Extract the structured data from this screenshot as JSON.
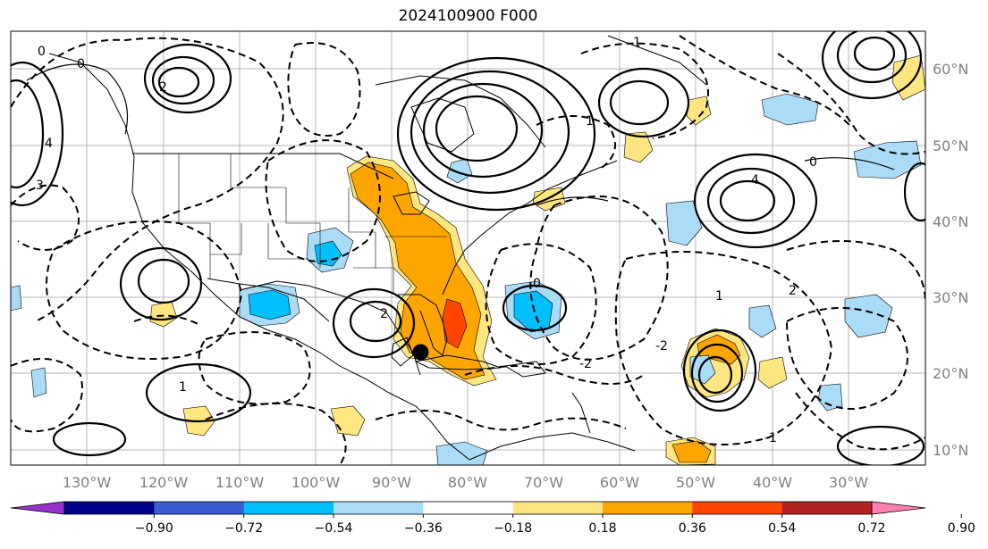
{
  "title": "2024100900 F000",
  "map": {
    "longitude_ticks": [
      "130°W",
      "120°W",
      "110°W",
      "100°W",
      "90°W",
      "80°W",
      "70°W",
      "60°W",
      "50°W",
      "40°W",
      "30°W"
    ],
    "latitude_ticks": [
      "60°N",
      "50°N",
      "40°N",
      "30°N",
      "20°N",
      "10°N"
    ],
    "contour_labels": [
      "0",
      "0",
      "1",
      "2",
      "2",
      "3",
      "4",
      "-2",
      "-1",
      "0",
      "4",
      "1",
      "-2",
      "2",
      "0",
      "1",
      "1"
    ],
    "storm_marker": {
      "label": "",
      "lon": -86.2,
      "lat": 22.8
    }
  },
  "colorbar": {
    "colors": [
      "#9932cc",
      "#00008b",
      "#3a5bd1",
      "#00bfff",
      "#aadcf8",
      "#ffffff",
      "#ffe680",
      "#ffa500",
      "#ff4500",
      "#b22222",
      "#ff80b0"
    ],
    "labels": [
      "−0.90",
      "−0.72",
      "−0.54",
      "−0.36",
      "−0.18",
      "0.18",
      "0.36",
      "0.54",
      "0.72",
      "0.90"
    ]
  }
}
